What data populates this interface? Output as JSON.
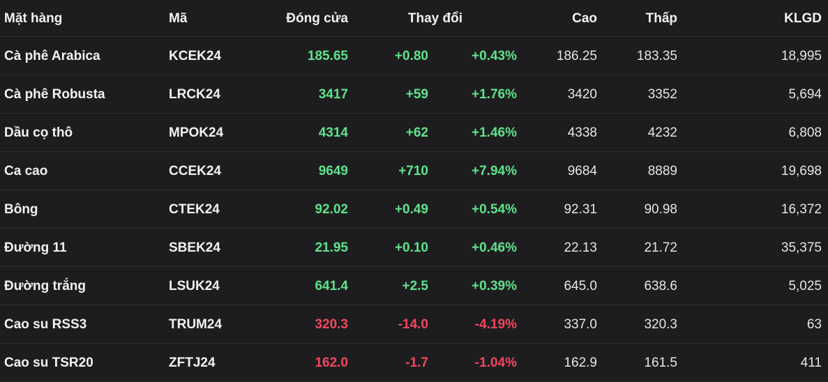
{
  "table": {
    "header": [
      "Mặt hàng",
      "Mã",
      "Đóng cửa",
      "Thay đổi",
      "Cao",
      "Thấp",
      "KLGD"
    ],
    "rows": [
      {
        "cells": [
          "Cà phê Arabica",
          "KCEK24",
          "185.65",
          "+0.80",
          "+0.43%",
          "186.25",
          "183.35",
          "18,995"
        ],
        "color": "#5ee38c"
      },
      {
        "cells": [
          "Cà phê Robusta",
          "LRCK24",
          "3417",
          "+59",
          "+1.76%",
          "3420",
          "3352",
          "5,694"
        ],
        "color": "#5ee38c"
      },
      {
        "cells": [
          "Dầu cọ thô",
          "MPOK24",
          "4314",
          "+62",
          "+1.46%",
          "4338",
          "4232",
          "6,808"
        ],
        "color": "#5ee38c"
      },
      {
        "cells": [
          "Ca cao",
          "CCEK24",
          "9649",
          "+710",
          "+7.94%",
          "9684",
          "8889",
          "19,698"
        ],
        "color": "#5ee38c"
      },
      {
        "cells": [
          "Bông",
          "CTEK24",
          "92.02",
          "+0.49",
          "+0.54%",
          "92.31",
          "90.98",
          "16,372"
        ],
        "color": "#5ee38c"
      },
      {
        "cells": [
          "Đường 11",
          "SBEK24",
          "21.95",
          "+0.10",
          "+0.46%",
          "22.13",
          "21.72",
          "35,375"
        ],
        "color": "#5ee38c"
      },
      {
        "cells": [
          "Đường trắng",
          "LSUK24",
          "641.4",
          "+2.5",
          "+0.39%",
          "645.0",
          "638.6",
          "5,025"
        ],
        "color": "#5ee38c"
      },
      {
        "cells": [
          "Cao su RSS3",
          "TRUM24",
          "320.3",
          "-14.0",
          "-4.19%",
          "337.0",
          "320.3",
          "63"
        ],
        "color": "#f2475e"
      },
      {
        "cells": [
          "Cao su TSR20",
          "ZFTJ24",
          "162.0",
          "-1.7",
          "-1.04%",
          "162.9",
          "161.5",
          "411"
        ],
        "color": "#f2475e"
      }
    ]
  }
}
